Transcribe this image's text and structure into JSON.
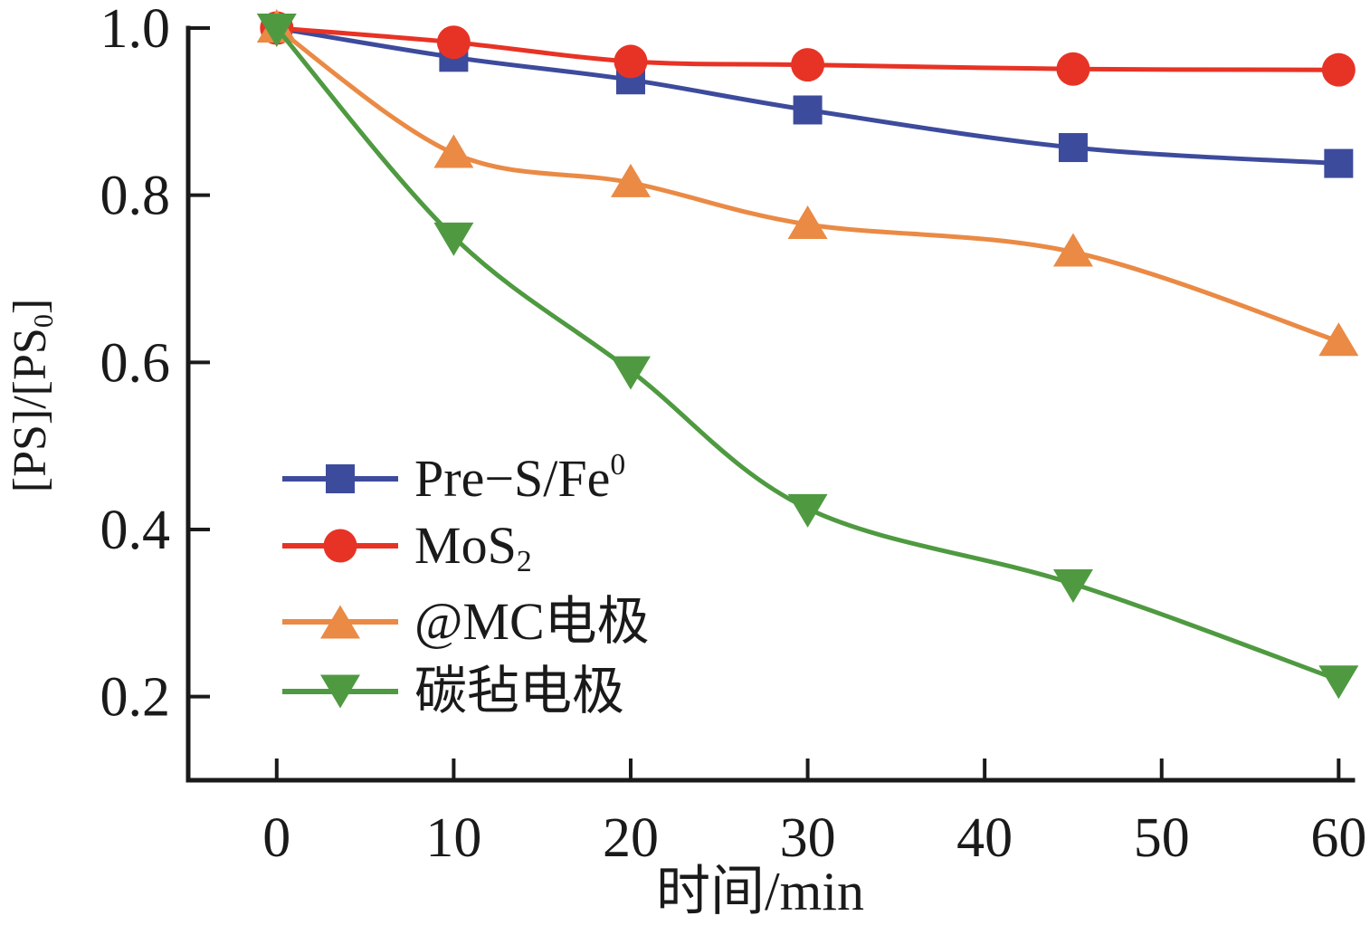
{
  "chart_data": {
    "type": "line",
    "x": [
      0,
      10,
      20,
      30,
      45,
      60
    ],
    "series": [
      {
        "name": "Pre−S/Fe0",
        "label_parts": [
          {
            "t": "Pre−S/Fe"
          },
          {
            "t": "0",
            "pos": "sup"
          }
        ],
        "color": "#3d4b9d",
        "marker": "square",
        "values": [
          1.0,
          0.965,
          0.938,
          0.902,
          0.857,
          0.838
        ]
      },
      {
        "name": "MoS2",
        "label_parts": [
          {
            "t": "MoS"
          },
          {
            "t": "2",
            "pos": "sub"
          }
        ],
        "color": "#e73325",
        "marker": "circle",
        "values": [
          1.0,
          0.983,
          0.96,
          0.956,
          0.951,
          0.95
        ]
      },
      {
        "name": "@MC电极",
        "label_parts": [
          {
            "t": "@MC电极"
          }
        ],
        "color": "#ea8a45",
        "marker": "triangle-up",
        "values": [
          1.0,
          0.85,
          0.815,
          0.765,
          0.732,
          0.625
        ]
      },
      {
        "name": "碳毡电极",
        "label_parts": [
          {
            "t": "碳毡电极"
          }
        ],
        "color": "#4f9a41",
        "marker": "triangle-down",
        "values": [
          1.0,
          0.75,
          0.59,
          0.425,
          0.335,
          0.22
        ]
      }
    ],
    "xlabel": "时间/min",
    "ylabel_text": "[PS]/[PS0]",
    "ylabel_parts": [
      {
        "t": "[PS]/[PS"
      },
      {
        "t": "0",
        "pos": "sub"
      },
      {
        "t": "]"
      }
    ],
    "x_ticks": [
      0,
      10,
      20,
      30,
      40,
      50,
      60
    ],
    "x_tick_labels": [
      "0",
      "10",
      "20",
      "30",
      "40",
      "50",
      "60"
    ],
    "y_ticks": [
      1.0,
      0.8,
      0.6,
      0.4,
      0.2
    ],
    "y_tick_labels": [
      "1.0",
      "0.8",
      "0.6",
      "0.4",
      "0.2"
    ],
    "xlim": [
      -5,
      60.8
    ],
    "ylim": [
      0.1,
      1.0
    ],
    "grid": false,
    "legend_position": "inside-center-left",
    "axis_color": "#1a1a1a",
    "background_color": "#ffffff"
  }
}
